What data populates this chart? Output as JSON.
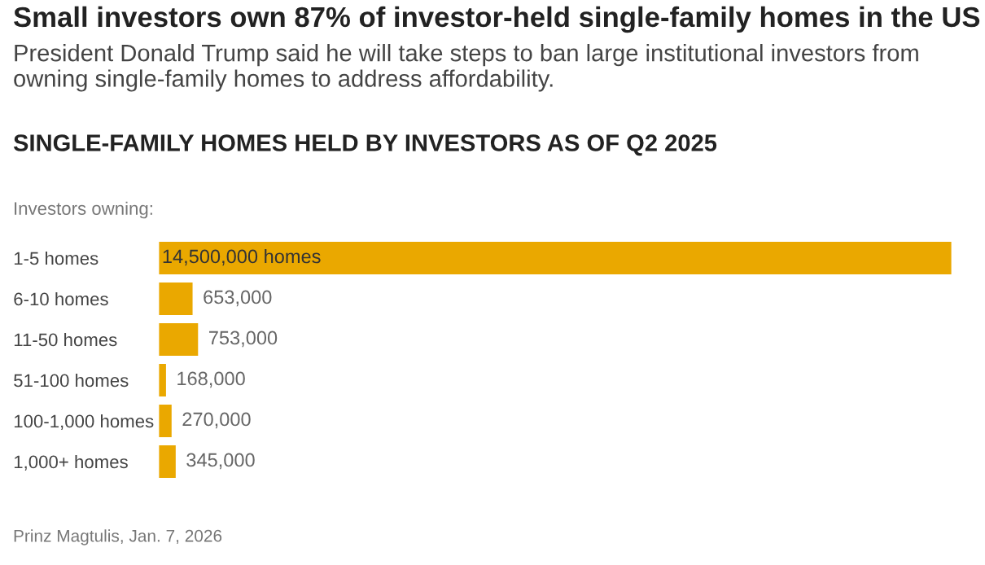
{
  "chart_data": {
    "type": "bar",
    "orientation": "horizontal",
    "title": "Small investors own 87% of investor-held single-family homes in the US",
    "subtitle": "President Donald Trump said he will take steps to ban large institutional investors from owning single-family homes to address affordability.",
    "annotations": [
      "SINGLE-FAMILY HOMES HELD BY INVESTORS AS OF Q2 2025",
      "Prinz Magtulis, Jan. 7, 2026"
    ],
    "ylabel": "Investors owning:",
    "categories": [
      "1-5 homes",
      "6-10 homes",
      "11-50 homes",
      "51-100 homes",
      "100-1,000 homes",
      "1,000+ homes"
    ],
    "values": [
      14500000,
      653000,
      753000,
      168000,
      270000,
      345000
    ],
    "value_labels": [
      "14,500,000 homes",
      "653,000",
      "753,000",
      "168,000",
      "270,000",
      "345,000"
    ],
    "color": "#eaa800"
  }
}
